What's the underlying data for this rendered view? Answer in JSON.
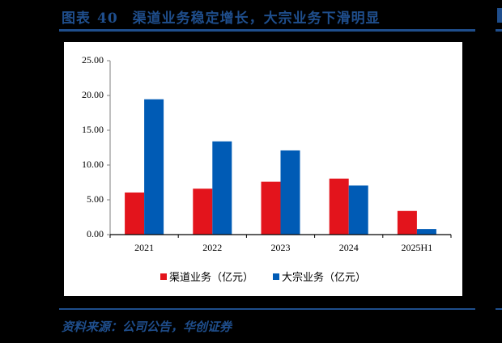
{
  "figure": {
    "label": "图表",
    "number": "40",
    "title": "渠道业务稳定增长，大宗业务下滑明显",
    "source": "资料来源：公司公告，华创证券"
  },
  "colors": {
    "accent": "#1F4E8C",
    "series_channel": "#E3141C",
    "series_bulk": "#005BB5"
  },
  "chart_data": {
    "type": "bar",
    "title": "渠道业务稳定增长，大宗业务下滑明显",
    "xlabel": "",
    "ylabel": "",
    "categories": [
      "2021",
      "2022",
      "2023",
      "2024",
      "2025H1"
    ],
    "series": [
      {
        "name": "渠道业务（亿元）",
        "color": "#E3141C",
        "values": [
          6.05,
          6.6,
          7.6,
          8.05,
          3.4
        ]
      },
      {
        "name": "大宗业务（亿元）",
        "color": "#005BB5",
        "values": [
          19.45,
          13.4,
          12.1,
          7.05,
          0.8
        ]
      }
    ],
    "ylim": [
      0,
      25
    ],
    "yticks": [
      "0.00",
      "5.00",
      "10.00",
      "15.00",
      "20.00",
      "25.00"
    ],
    "grid": false,
    "legend_position": "bottom"
  }
}
